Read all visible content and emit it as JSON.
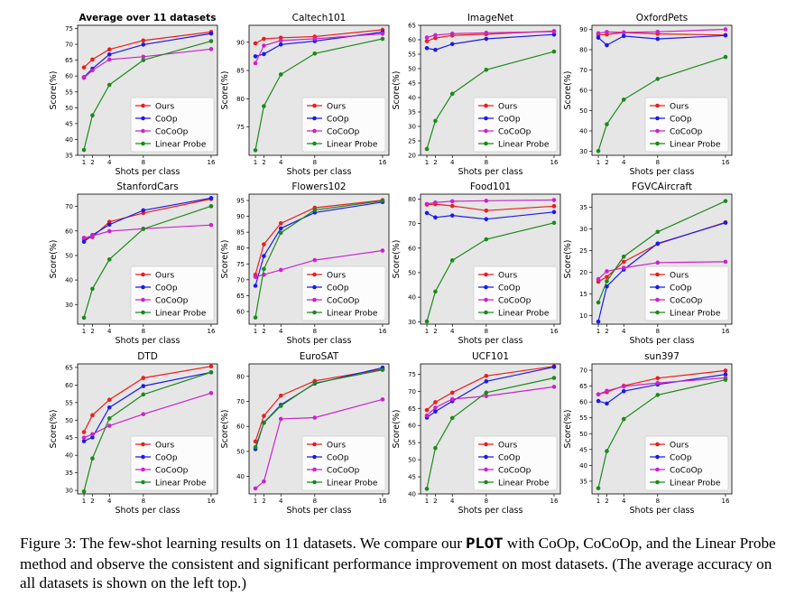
{
  "series_styles": [
    {
      "name": "Ours",
      "color": "#ee1c1c"
    },
    {
      "name": "CoOp",
      "color": "#1a1aee"
    },
    {
      "name": "CoCoOp",
      "color": "#cc22cc"
    },
    {
      "name": "Linear Probe",
      "color": "#1b8a1b"
    }
  ],
  "axis_labels": {
    "xlabel": "Shots per class",
    "ylabel": "Score(%)"
  },
  "chart_data": [
    {
      "type": "line",
      "title": "Average over 11 datasets",
      "bold_title": true,
      "x": [
        1,
        2,
        4,
        8,
        16
      ],
      "xticks": [
        "1",
        "2",
        "4",
        "8",
        "16"
      ],
      "ylim": [
        35,
        76
      ],
      "yticks": [
        35,
        40,
        45,
        50,
        55,
        60,
        65,
        70,
        75
      ],
      "legend": "lower-right",
      "series": [
        {
          "name": "Ours",
          "values": [
            62.7,
            65.2,
            68.4,
            71.2,
            73.9
          ]
        },
        {
          "name": "CoOp",
          "values": [
            59.6,
            62.3,
            66.8,
            69.9,
            73.4
          ]
        },
        {
          "name": "CoCoOp",
          "values": [
            59.4,
            61.8,
            65.2,
            66.1,
            68.5
          ]
        },
        {
          "name": "Linear Probe",
          "values": [
            36.7,
            47.6,
            57.2,
            65.0,
            71.0
          ]
        }
      ]
    },
    {
      "type": "line",
      "title": "Caltech101",
      "bold_title": false,
      "x": [
        1,
        2,
        4,
        8,
        16
      ],
      "xticks": [
        "1",
        "2",
        "4",
        "8",
        "16"
      ],
      "ylim": [
        70,
        93
      ],
      "yticks": [
        75,
        80,
        85,
        90
      ],
      "legend": "lower-right",
      "series": [
        {
          "name": "Ours",
          "values": [
            89.8,
            90.6,
            90.8,
            91.0,
            92.2
          ]
        },
        {
          "name": "CoOp",
          "values": [
            87.5,
            87.9,
            89.6,
            90.2,
            91.8
          ]
        },
        {
          "name": "CoCoOp",
          "values": [
            86.3,
            89.4,
            90.3,
            90.6,
            91.5
          ]
        },
        {
          "name": "Linear Probe",
          "values": [
            70.9,
            78.7,
            84.3,
            88.0,
            90.6
          ]
        }
      ]
    },
    {
      "type": "line",
      "title": "ImageNet",
      "bold_title": false,
      "x": [
        1,
        2,
        4,
        8,
        16
      ],
      "xticks": [
        "1",
        "2",
        "4",
        "8",
        "16"
      ],
      "ylim": [
        20,
        65
      ],
      "yticks": [
        20,
        25,
        30,
        35,
        40,
        45,
        50,
        55,
        60,
        65
      ],
      "legend": "lower-right",
      "series": [
        {
          "name": "Ours",
          "values": [
            59.5,
            60.6,
            61.5,
            61.9,
            63.0
          ]
        },
        {
          "name": "CoOp",
          "values": [
            57.1,
            56.5,
            58.5,
            60.3,
            61.8
          ]
        },
        {
          "name": "CoCoOp",
          "values": [
            60.8,
            61.6,
            62.1,
            62.4,
            62.8
          ]
        },
        {
          "name": "Linear Probe",
          "values": [
            22.2,
            31.9,
            41.3,
            49.6,
            55.9
          ]
        }
      ]
    },
    {
      "type": "line",
      "title": "OxfordPets",
      "bold_title": false,
      "x": [
        1,
        2,
        4,
        8,
        16
      ],
      "xticks": [
        "1",
        "2",
        "4",
        "8",
        "16"
      ],
      "ylim": [
        28,
        92
      ],
      "yticks": [
        30,
        40,
        50,
        60,
        70,
        80,
        90
      ],
      "legend": "lower-right",
      "series": [
        {
          "name": "Ours",
          "values": [
            87.2,
            87.5,
            88.4,
            87.8,
            87.2
          ]
        },
        {
          "name": "CoOp",
          "values": [
            85.9,
            82.2,
            86.7,
            85.3,
            87.0
          ]
        },
        {
          "name": "CoCoOp",
          "values": [
            88.1,
            88.7,
            88.5,
            88.8,
            90.0
          ]
        },
        {
          "name": "Linear Probe",
          "values": [
            30.1,
            43.3,
            55.4,
            65.6,
            76.4
          ]
        }
      ]
    },
    {
      "type": "line",
      "title": "StanfordCars",
      "bold_title": false,
      "x": [
        1,
        2,
        4,
        8,
        16
      ],
      "xticks": [
        "1",
        "2",
        "4",
        "8",
        "16"
      ],
      "ylim": [
        22,
        75
      ],
      "yticks": [
        30,
        40,
        50,
        60,
        70
      ],
      "legend": "lower-right",
      "series": [
        {
          "name": "Ours",
          "values": [
            56.6,
            57.5,
            63.7,
            67.3,
            73.0
          ]
        },
        {
          "name": "CoOp",
          "values": [
            55.6,
            58.3,
            62.6,
            68.4,
            73.4
          ]
        },
        {
          "name": "CoCoOp",
          "values": [
            57.2,
            58.0,
            59.9,
            60.9,
            62.4
          ]
        },
        {
          "name": "Linear Probe",
          "values": [
            24.6,
            36.4,
            48.4,
            60.8,
            70.1
          ]
        }
      ]
    },
    {
      "type": "line",
      "title": "Flowers102",
      "bold_title": false,
      "x": [
        1,
        2,
        4,
        8,
        16
      ],
      "xticks": [
        "1",
        "2",
        "4",
        "8",
        "16"
      ],
      "ylim": [
        56,
        97
      ],
      "yticks": [
        60,
        65,
        70,
        75,
        80,
        85,
        90,
        95
      ],
      "legend": "lower-right",
      "series": [
        {
          "name": "Ours",
          "values": [
            71.6,
            81.2,
            87.8,
            92.7,
            95.1
          ]
        },
        {
          "name": "CoOp",
          "values": [
            68.1,
            77.5,
            86.2,
            91.2,
            94.5
          ]
        },
        {
          "name": "CoCoOp",
          "values": [
            70.9,
            71.6,
            73.1,
            76.2,
            79.2
          ]
        },
        {
          "name": "Linear Probe",
          "values": [
            58.1,
            73.4,
            84.8,
            92.0,
            94.9
          ]
        }
      ]
    },
    {
      "type": "line",
      "title": "Food101",
      "bold_title": false,
      "x": [
        1,
        2,
        4,
        8,
        16
      ],
      "xticks": [
        "1",
        "2",
        "4",
        "8",
        "16"
      ],
      "ylim": [
        29,
        82
      ],
      "yticks": [
        30,
        40,
        50,
        60,
        70,
        80
      ],
      "legend": "lower-right",
      "series": [
        {
          "name": "Ours",
          "values": [
            77.7,
            77.9,
            77.2,
            75.3,
            77.1
          ]
        },
        {
          "name": "CoOp",
          "values": [
            74.3,
            72.5,
            73.3,
            71.8,
            74.7
          ]
        },
        {
          "name": "CoCoOp",
          "values": [
            78.0,
            78.6,
            79.1,
            79.3,
            79.6
          ]
        },
        {
          "name": "Linear Probe",
          "values": [
            30.1,
            42.3,
            55.0,
            63.6,
            70.3
          ]
        }
      ]
    },
    {
      "type": "line",
      "title": "FGVCAircraft",
      "bold_title": false,
      "x": [
        1,
        2,
        4,
        8,
        16
      ],
      "xticks": [
        "1",
        "2",
        "4",
        "8",
        "16"
      ],
      "ylim": [
        8,
        38
      ],
      "yticks": [
        10,
        15,
        20,
        25,
        30,
        35
      ],
      "legend": "lower-right",
      "series": [
        {
          "name": "Ours",
          "values": [
            17.8,
            18.9,
            22.4,
            26.5,
            31.5
          ]
        },
        {
          "name": "CoOp",
          "values": [
            8.6,
            16.7,
            20.6,
            26.6,
            31.4
          ]
        },
        {
          "name": "CoCoOp",
          "values": [
            18.4,
            20.2,
            21.0,
            22.2,
            22.4
          ]
        },
        {
          "name": "Linear Probe",
          "values": [
            13.0,
            17.9,
            23.6,
            29.3,
            36.4
          ]
        }
      ]
    },
    {
      "type": "line",
      "title": "DTD",
      "bold_title": false,
      "x": [
        1,
        2,
        4,
        8,
        16
      ],
      "xticks": [
        "1",
        "2",
        "4",
        "8",
        "16"
      ],
      "ylim": [
        29,
        66
      ],
      "yticks": [
        30,
        35,
        40,
        45,
        50,
        55,
        60,
        65
      ],
      "legend": "lower-right",
      "series": [
        {
          "name": "Ours",
          "values": [
            46.6,
            51.4,
            55.8,
            62.0,
            65.3
          ]
        },
        {
          "name": "CoOp",
          "values": [
            44.0,
            45.1,
            53.6,
            59.7,
            63.6
          ]
        },
        {
          "name": "CoCoOp",
          "values": [
            45.0,
            46.0,
            48.4,
            51.7,
            57.7
          ]
        },
        {
          "name": "Linear Probe",
          "values": [
            29.7,
            39.1,
            50.5,
            57.3,
            63.6
          ]
        }
      ]
    },
    {
      "type": "line",
      "title": "EuroSAT",
      "bold_title": false,
      "x": [
        1,
        2,
        4,
        8,
        16
      ],
      "xticks": [
        "1",
        "2",
        "4",
        "8",
        "16"
      ],
      "ylim": [
        33,
        85
      ],
      "yticks": [
        40,
        50,
        60,
        70,
        80
      ],
      "legend": "lower-right",
      "series": [
        {
          "name": "Ours",
          "values": [
            54.0,
            64.2,
            72.3,
            78.2,
            82.9
          ]
        },
        {
          "name": "CoOp",
          "values": [
            50.9,
            61.5,
            68.6,
            77.1,
            83.5
          ]
        },
        {
          "name": "CoCoOp",
          "values": [
            35.2,
            38.0,
            63.0,
            63.5,
            70.8
          ]
        },
        {
          "name": "Linear Probe",
          "values": [
            51.7,
            61.4,
            68.2,
            77.3,
            82.6
          ]
        }
      ]
    },
    {
      "type": "line",
      "title": "UCF101",
      "bold_title": false,
      "x": [
        1,
        2,
        4,
        8,
        16
      ],
      "xticks": [
        "1",
        "2",
        "4",
        "8",
        "16"
      ],
      "ylim": [
        40,
        78
      ],
      "yticks": [
        40,
        45,
        50,
        55,
        60,
        65,
        70,
        75
      ],
      "legend": "lower-right",
      "series": [
        {
          "name": "Ours",
          "values": [
            64.5,
            66.8,
            69.6,
            74.5,
            77.3
          ]
        },
        {
          "name": "CoOp",
          "values": [
            62.3,
            64.1,
            67.1,
            72.9,
            77.1
          ]
        },
        {
          "name": "CoCoOp",
          "values": [
            62.9,
            65.2,
            67.7,
            68.6,
            71.3
          ]
        },
        {
          "name": "Linear Probe",
          "values": [
            41.5,
            53.4,
            62.2,
            69.6,
            73.9
          ]
        }
      ]
    },
    {
      "type": "line",
      "title": "sun397",
      "bold_title": false,
      "x": [
        1,
        2,
        4,
        8,
        16
      ],
      "xticks": [
        "1",
        "2",
        "4",
        "8",
        "16"
      ],
      "ylim": [
        31,
        72
      ],
      "yticks": [
        35,
        40,
        45,
        50,
        55,
        60,
        65,
        70
      ],
      "legend": "lower-right",
      "series": [
        {
          "name": "Ours",
          "values": [
            62.4,
            63.1,
            65.1,
            67.5,
            69.9
          ]
        },
        {
          "name": "CoOp",
          "values": [
            60.3,
            59.5,
            63.4,
            65.5,
            68.7
          ]
        },
        {
          "name": "CoCoOp",
          "values": [
            62.4,
            63.5,
            64.9,
            66.0,
            67.6
          ]
        },
        {
          "name": "Linear Probe",
          "values": [
            32.8,
            44.5,
            54.6,
            62.2,
            67.0
          ]
        }
      ]
    }
  ],
  "caption": {
    "prefix": "Figure 3: The few-shot learning results on 11 datasets. We compare our ",
    "method": "PLOT",
    "suffix": " with CoOp, CoCoOp, and the Linear Probe method and observe the consistent and significant performance improvement on most datasets. (The average accuracy on all datasets is shown on the left top.)"
  }
}
